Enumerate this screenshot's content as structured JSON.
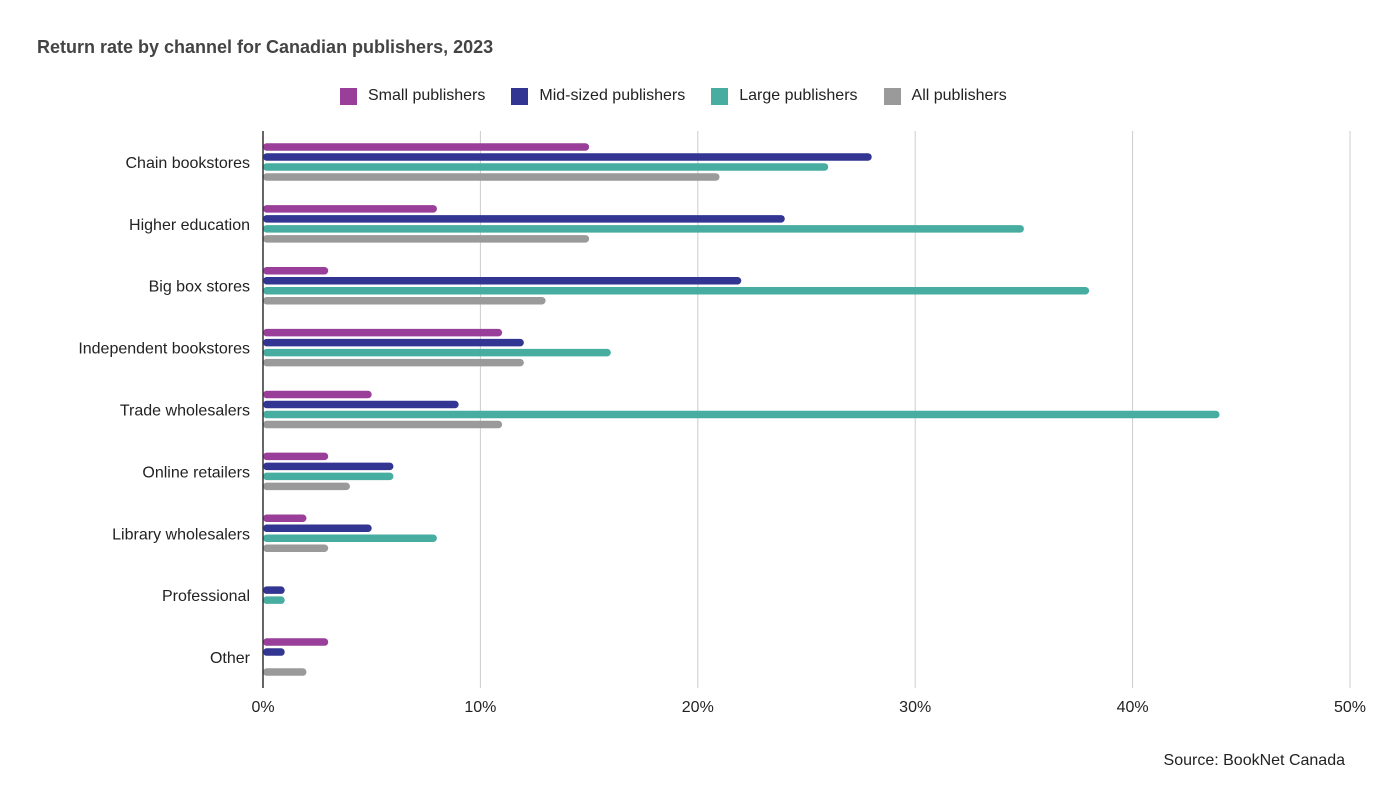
{
  "chart_data": {
    "type": "bar",
    "orientation": "horizontal",
    "title": "Return rate by channel for Canadian publishers, 2023",
    "source": "Source: BookNet Canada",
    "categories": [
      "Chain bookstores",
      "Higher education",
      "Big box stores",
      "Independent bookstores",
      "Trade wholesalers",
      "Online retailers",
      "Library wholesalers",
      "Professional",
      "Other"
    ],
    "series": [
      {
        "name": "Small publishers",
        "color": "#993f9a",
        "values": [
          15,
          8,
          3,
          11,
          5,
          3,
          2,
          0,
          3
        ]
      },
      {
        "name": "Mid-sized publishers",
        "color": "#323591",
        "values": [
          28,
          24,
          22,
          12,
          9,
          6,
          5,
          1,
          1
        ]
      },
      {
        "name": "Large publishers",
        "color": "#47ada1",
        "values": [
          26,
          35,
          38,
          16,
          44,
          6,
          8,
          1,
          0
        ]
      },
      {
        "name": "All publishers",
        "color": "#9a9a9a",
        "values": [
          21,
          15,
          13,
          12,
          11,
          4,
          3,
          0,
          2
        ]
      }
    ],
    "xlim": [
      0,
      50
    ],
    "x_ticks": [
      "0%",
      "10%",
      "20%",
      "30%",
      "40%",
      "50%"
    ],
    "grid": true,
    "legend_position": "top"
  }
}
